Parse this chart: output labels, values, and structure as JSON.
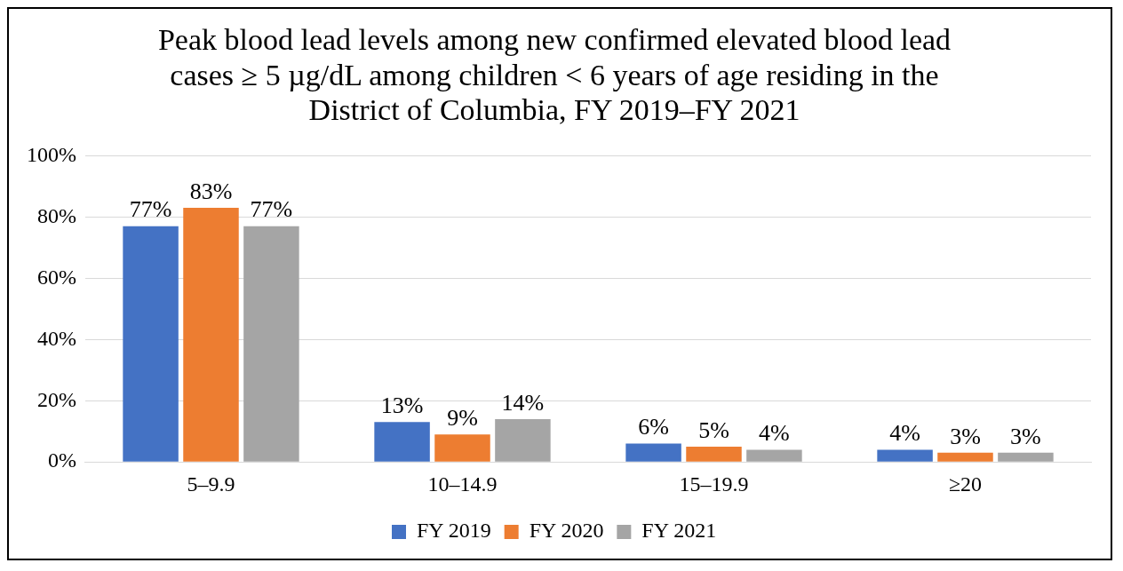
{
  "chart_data": {
    "type": "bar",
    "title": "Peak blood lead levels among new confirmed elevated blood lead cases ≥ 5 µg/dL among children < 6 years of age residing in the District of Columbia, FY 2019–FY 2021",
    "categories": [
      "5–9.9",
      "10–14.9",
      "15–19.9",
      "≥20"
    ],
    "series": [
      {
        "name": "FY 2019",
        "color": "#4472c4",
        "values": [
          77,
          13,
          6,
          4
        ],
        "value_labels": [
          "77%",
          "13%",
          "6%",
          "4%"
        ]
      },
      {
        "name": "FY 2020",
        "color": "#ed7d31",
        "values": [
          83,
          9,
          5,
          3
        ],
        "value_labels": [
          "83%",
          "9%",
          "5%",
          "3%"
        ]
      },
      {
        "name": "FY 2021",
        "color": "#a5a5a5",
        "values": [
          77,
          14,
          4,
          3
        ],
        "value_labels": [
          "77%",
          "14%",
          "4%",
          "3%"
        ]
      }
    ],
    "ylim": [
      0,
      100
    ],
    "yticks": [
      {
        "value": 0,
        "label": "0%"
      },
      {
        "value": 20,
        "label": "20%"
      },
      {
        "value": 40,
        "label": "40%"
      },
      {
        "value": 60,
        "label": "60%"
      },
      {
        "value": 80,
        "label": "80%"
      },
      {
        "value": 100,
        "label": "100%"
      }
    ],
    "grid": "y",
    "legend": "bottom"
  }
}
